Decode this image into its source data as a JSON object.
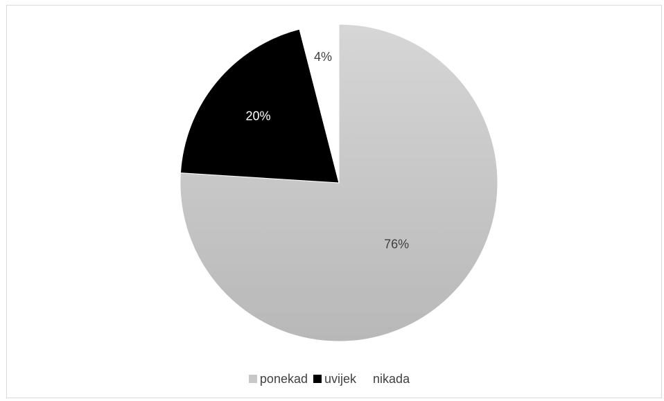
{
  "chart_data": {
    "type": "pie",
    "categories": [
      "ponekad",
      "uvijek",
      "nikada"
    ],
    "values": [
      76,
      20,
      4
    ],
    "data_labels": [
      "76%",
      "20%",
      "4%"
    ],
    "colors": [
      "#c8c8c8",
      "#000000",
      "#ffffff"
    ],
    "label_colors": [
      "#404040",
      "#ffffff",
      "#404040"
    ],
    "legend_position": "bottom",
    "start_angle": "12 o'clock, clockwise"
  }
}
